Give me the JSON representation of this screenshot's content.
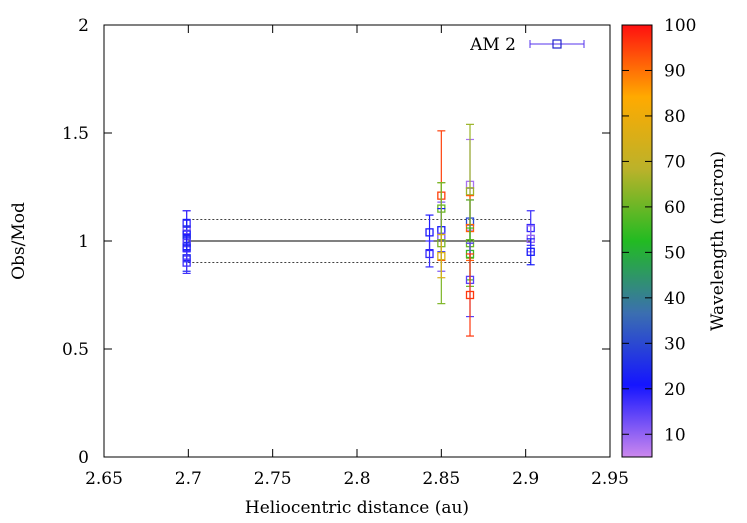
{
  "chart_data": {
    "type": "scatter",
    "title": "",
    "xlabel": "Heliocentric distance (au)",
    "ylabel": "Obs/Mod",
    "xlim": [
      2.65,
      2.95
    ],
    "ylim": [
      0,
      2
    ],
    "x_ticks": [
      "2.65",
      "2.7",
      "2.75",
      "2.8",
      "2.85",
      "2.9",
      "2.95"
    ],
    "y_ticks": [
      "0",
      "0.5",
      "1",
      "1.5",
      "2"
    ],
    "grid": false,
    "legend": {
      "placement": "top-right",
      "entries": [
        "AM 2"
      ]
    },
    "reference_lines": [
      {
        "y": 1.0,
        "x_range": [
          2.7,
          2.903
        ],
        "style": "solid"
      },
      {
        "y": 1.1,
        "x_range": [
          2.7,
          2.903
        ],
        "style": "dotted"
      },
      {
        "y": 0.9,
        "x_range": [
          2.7,
          2.903
        ],
        "style": "dotted"
      }
    ],
    "colorbar": {
      "label": "Wavelength (micron)",
      "range": [
        5,
        100
      ],
      "ticks": [
        "10",
        "20",
        "30",
        "40",
        "50",
        "60",
        "70",
        "80",
        "90",
        "100"
      ],
      "palette": [
        "#cc88ee",
        "#1515ff",
        "#3b6fb0",
        "#22bb22",
        "#bbb22a",
        "#ffaa00",
        "#ff1010"
      ]
    },
    "series": [
      {
        "name": "AM 2",
        "points": [
          {
            "x": 2.699,
            "y": 1.05,
            "err": 0.09,
            "wl": 12
          },
          {
            "x": 2.699,
            "y": 1.08,
            "err": 0.06,
            "wl": 18
          },
          {
            "x": 2.699,
            "y": 1.03,
            "err": 0.07,
            "wl": 22
          },
          {
            "x": 2.699,
            "y": 1.01,
            "err": 0.06,
            "wl": 25
          },
          {
            "x": 2.699,
            "y": 0.99,
            "err": 0.06,
            "wl": 15
          },
          {
            "x": 2.699,
            "y": 0.97,
            "err": 0.06,
            "wl": 20
          },
          {
            "x": 2.699,
            "y": 0.92,
            "err": 0.06,
            "wl": 24
          },
          {
            "x": 2.699,
            "y": 0.9,
            "err": 0.05,
            "wl": 17
          },
          {
            "x": 2.843,
            "y": 1.04,
            "err": 0.08,
            "wl": 20
          },
          {
            "x": 2.843,
            "y": 0.94,
            "err": 0.06,
            "wl": 18
          },
          {
            "x": 2.85,
            "y": 1.21,
            "err": 0.3,
            "wl": 95
          },
          {
            "x": 2.85,
            "y": 1.15,
            "err": 0.12,
            "wl": 60
          },
          {
            "x": 2.85,
            "y": 1.05,
            "err": 0.1,
            "wl": 22
          },
          {
            "x": 2.85,
            "y": 1.02,
            "err": 0.16,
            "wl": 12
          },
          {
            "x": 2.85,
            "y": 0.99,
            "err": 0.28,
            "wl": 62
          },
          {
            "x": 2.85,
            "y": 0.93,
            "err": 0.1,
            "wl": 75
          },
          {
            "x": 2.867,
            "y": 1.26,
            "err": 0.21,
            "wl": 8
          },
          {
            "x": 2.867,
            "y": 1.23,
            "err": 0.31,
            "wl": 65
          },
          {
            "x": 2.867,
            "y": 1.09,
            "err": 0.1,
            "wl": 30
          },
          {
            "x": 2.867,
            "y": 1.06,
            "err": 0.15,
            "wl": 92
          },
          {
            "x": 2.867,
            "y": 0.99,
            "err": 0.2,
            "wl": 60
          },
          {
            "x": 2.867,
            "y": 0.94,
            "err": 0.12,
            "wl": 55
          },
          {
            "x": 2.867,
            "y": 0.82,
            "err": 0.17,
            "wl": 15
          },
          {
            "x": 2.867,
            "y": 0.75,
            "err": 0.19,
            "wl": 96
          },
          {
            "x": 2.903,
            "y": 1.06,
            "err": 0.08,
            "wl": 18
          },
          {
            "x": 2.903,
            "y": 1.01,
            "err": 0.06,
            "wl": 10
          },
          {
            "x": 2.903,
            "y": 0.95,
            "err": 0.06,
            "wl": 22
          }
        ]
      }
    ]
  }
}
